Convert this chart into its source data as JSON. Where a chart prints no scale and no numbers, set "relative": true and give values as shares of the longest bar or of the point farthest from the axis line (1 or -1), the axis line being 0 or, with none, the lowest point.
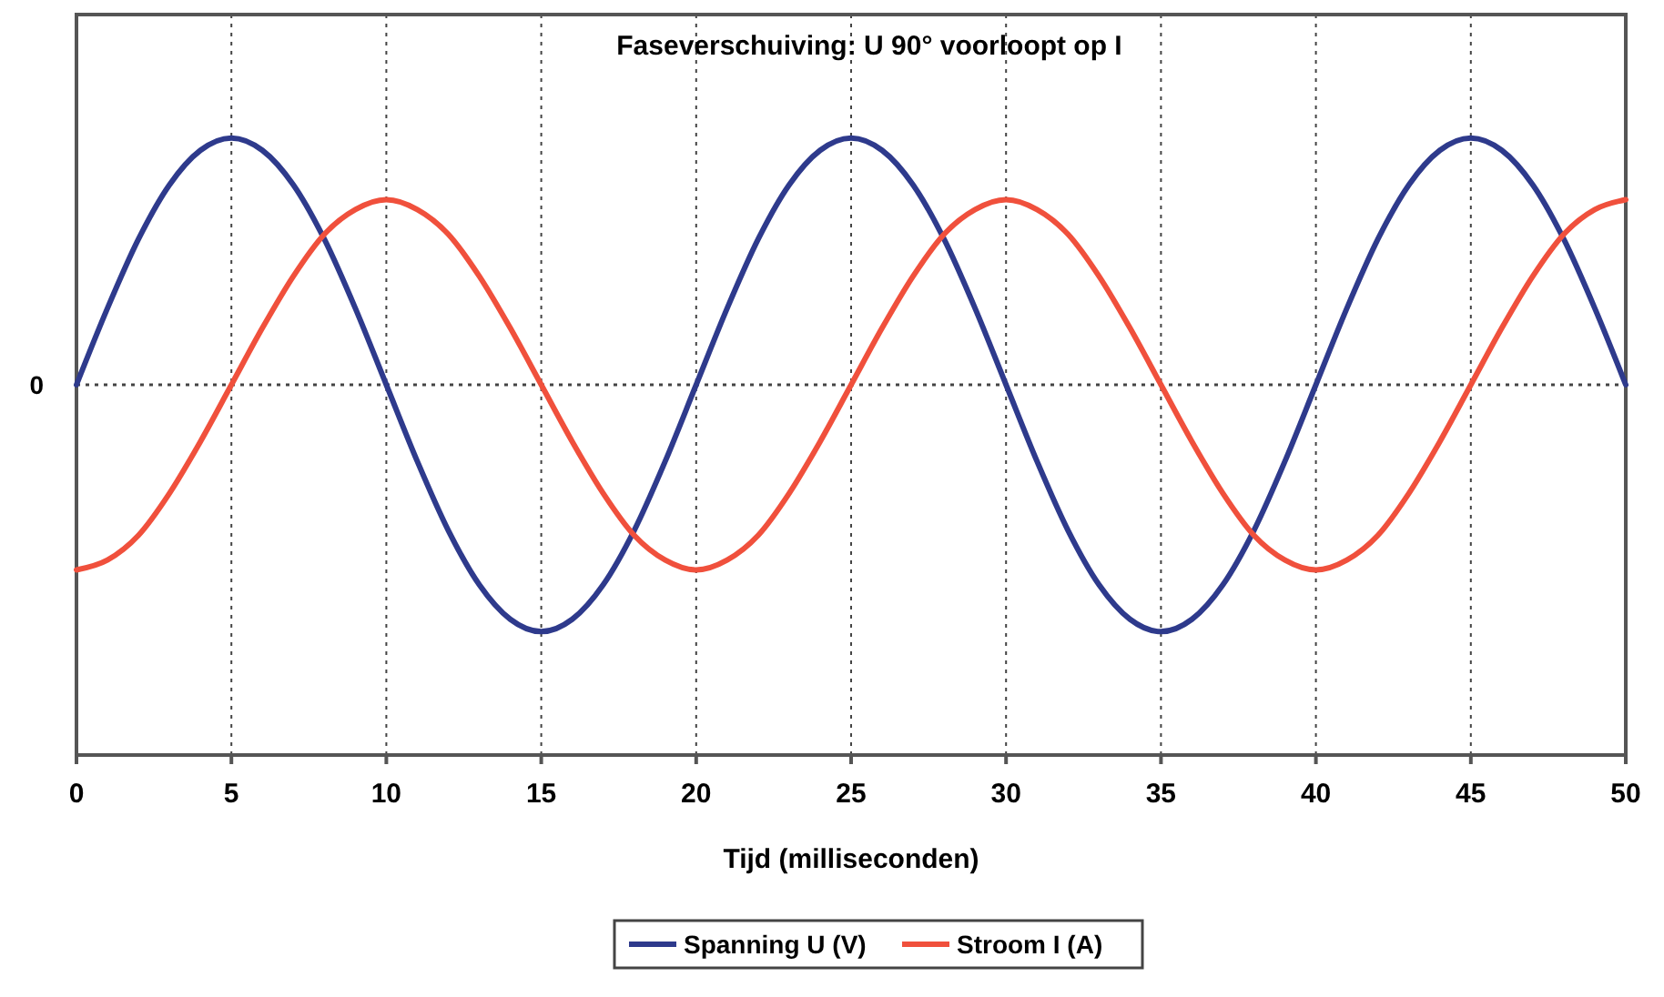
{
  "chart_data": {
    "type": "line",
    "title": "Faseverschuiving: U 90° voorloopt op I",
    "xlabel": "Tijd (milliseconden)",
    "x": [
      0,
      1,
      2,
      3,
      4,
      5,
      6,
      7,
      8,
      9,
      10,
      11,
      12,
      13,
      14,
      15,
      16,
      17,
      18,
      19,
      20,
      21,
      22,
      23,
      24,
      25,
      26,
      27,
      28,
      29,
      30,
      31,
      32,
      33,
      34,
      35,
      36,
      37,
      38,
      39,
      40,
      41,
      42,
      43,
      44,
      45,
      46,
      47,
      48,
      49,
      50
    ],
    "xlim": [
      0,
      50
    ],
    "xticks": [
      0,
      5,
      10,
      15,
      20,
      25,
      30,
      35,
      40,
      45,
      50
    ],
    "relative": true,
    "series": [
      {
        "name": "Spanning U (V)",
        "color": "#2e3a8c",
        "values": [
          0,
          0.31,
          0.59,
          0.81,
          0.95,
          1,
          0.95,
          0.81,
          0.59,
          0.31,
          0,
          -0.31,
          -0.59,
          -0.81,
          -0.95,
          -1,
          -0.95,
          -0.81,
          -0.59,
          -0.31,
          0,
          0.31,
          0.59,
          0.81,
          0.95,
          1,
          0.95,
          0.81,
          0.59,
          0.31,
          0,
          -0.31,
          -0.59,
          -0.81,
          -0.95,
          -1,
          -0.95,
          -0.81,
          -0.59,
          -0.31,
          0,
          0.31,
          0.59,
          0.81,
          0.95,
          1,
          0.95,
          0.81,
          0.59,
          0.31,
          0
        ]
      },
      {
        "name": "Stroom I (A)",
        "color": "#f0503c",
        "values": [
          -0.75,
          -0.71,
          -0.61,
          -0.44,
          -0.23,
          0,
          0.23,
          0.44,
          0.61,
          0.71,
          0.75,
          0.71,
          0.61,
          0.44,
          0.23,
          0,
          -0.23,
          -0.44,
          -0.61,
          -0.71,
          -0.75,
          -0.71,
          -0.61,
          -0.44,
          -0.23,
          0,
          0.23,
          0.44,
          0.61,
          0.71,
          0.75,
          0.71,
          0.61,
          0.44,
          0.23,
          0,
          -0.23,
          -0.44,
          -0.61,
          -0.71,
          -0.75,
          -0.71,
          -0.61,
          -0.44,
          -0.23,
          0,
          0.23,
          0.44,
          0.61,
          0.71,
          0.75
        ]
      }
    ],
    "ref_lines": [
      {
        "axis": "y",
        "value": 0,
        "label": "0",
        "line_style": "dotted"
      }
    ],
    "grid": "x",
    "line_style": "solid",
    "marker": "none",
    "legend": "bottom"
  }
}
